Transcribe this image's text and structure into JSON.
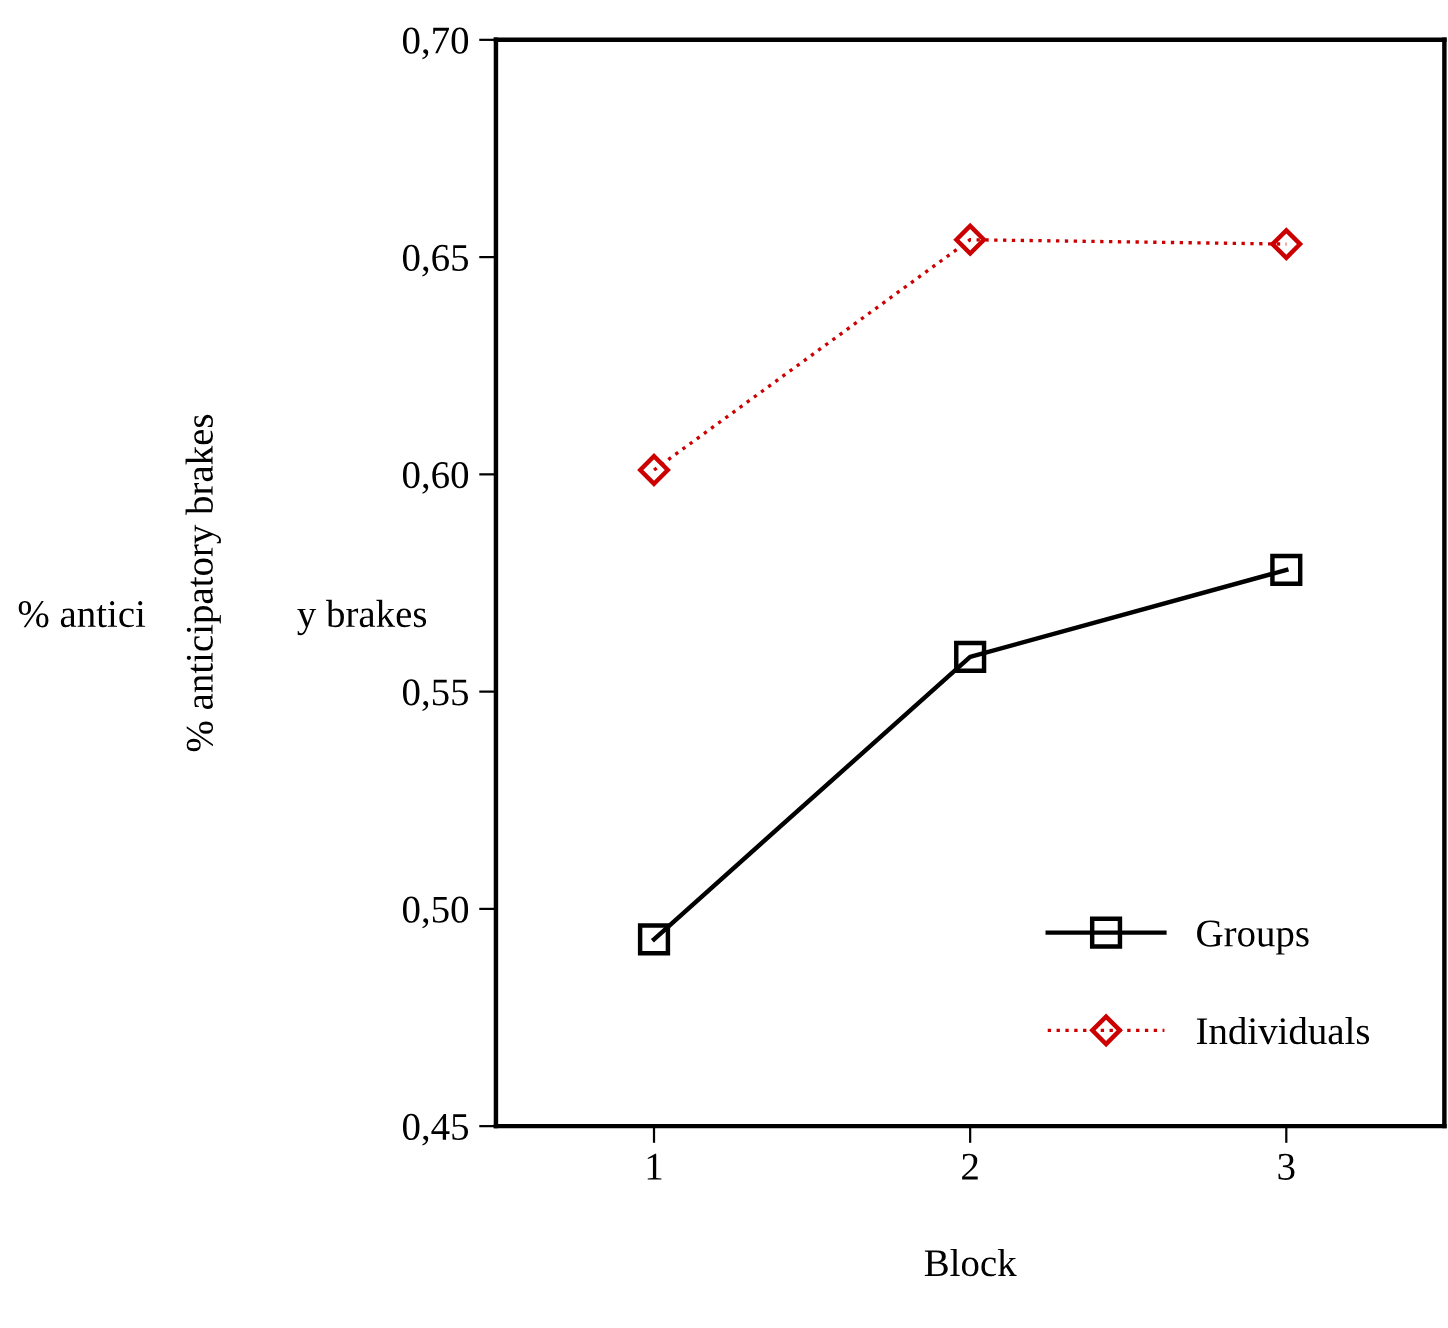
{
  "chart_data": {
    "type": "line",
    "xlabel": "Block",
    "ylabel": "% anticipatory brakes",
    "x": [
      1,
      2,
      3
    ],
    "xlim": [
      0.5,
      3.5
    ],
    "xticks": [
      1,
      2,
      3
    ],
    "ylim": [
      0.45,
      0.7
    ],
    "yticks": [
      {
        "value": 0.45,
        "label": "0,45"
      },
      {
        "value": 0.5,
        "label": "0,50"
      },
      {
        "value": 0.55,
        "label": "0,55"
      },
      {
        "value": 0.6,
        "label": "0,60"
      },
      {
        "value": 0.65,
        "label": "0,65"
      },
      {
        "value": 0.7,
        "label": "0,70"
      }
    ],
    "series": [
      {
        "name": "Groups",
        "color": "#000000",
        "values": [
          0.493,
          0.558,
          0.578
        ],
        "marker": "square",
        "line_style": "solid"
      },
      {
        "name": "Individuals",
        "color": "#cc0000",
        "values": [
          0.601,
          0.654,
          0.653
        ],
        "marker": "diamond",
        "line_style": "dotted"
      }
    ],
    "annotations": [
      "% antici",
      "y brakes"
    ],
    "legend": "bottom right",
    "grid": false
  }
}
